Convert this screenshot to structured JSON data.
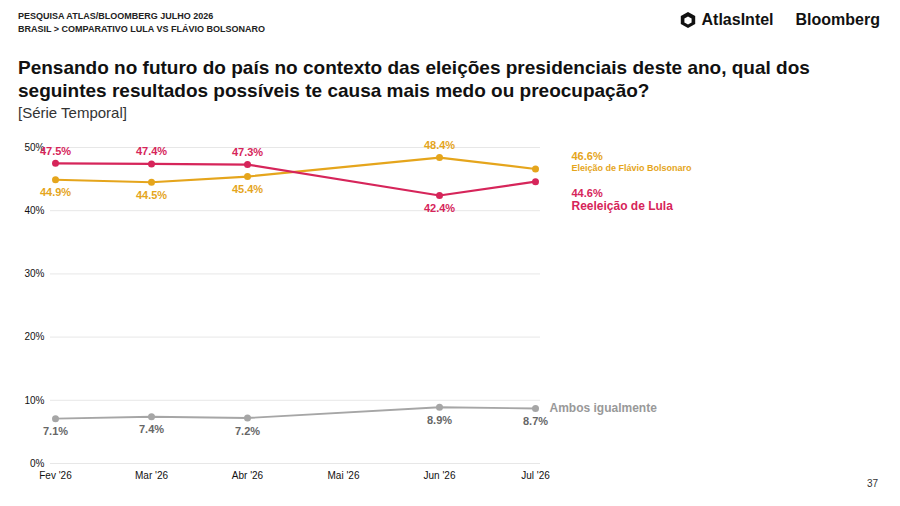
{
  "chart_data": {
    "type": "line",
    "header": [
      "PESQUISA ATLAS/BLOOMBERG JULHO 2026",
      "BRASIL > COMPARATIVO LULA VS FLÁVIO BOLSONARO"
    ],
    "brands": [
      "AtlasIntel",
      "Bloomberg"
    ],
    "title": "Pensando no futuro do país no contexto das eleições presidenciais deste ano, qual dos seguintes resultados possíveis te causa mais medo ou preocupação?",
    "subtitle": "[Série Temporal]",
    "page": 37,
    "categories": [
      "Fev '26",
      "Mar '26",
      "Abr '26",
      "Mai '26",
      "Jun '26",
      "Jul '26"
    ],
    "series": [
      {
        "name": "Ambos igualmente",
        "color": "#a6a6a6",
        "values": [
          7.1,
          7.4,
          7.2,
          null,
          8.9,
          8.7
        ],
        "value_labels": [
          "7.1%",
          "7.4%",
          "7.2%",
          null,
          "8.9%",
          "8.7%"
        ]
      },
      {
        "name": "Eleição de Flávio Bolsonaro",
        "color": "#e5a51c",
        "values": [
          44.9,
          44.5,
          45.4,
          null,
          48.4,
          46.6
        ],
        "value_labels": [
          "44.9%",
          "44.5%",
          "45.4%",
          null,
          "48.4%",
          "46.6%"
        ]
      },
      {
        "name": "Reeleição de Lula",
        "color": "#d6255a",
        "values": [
          47.5,
          47.4,
          47.3,
          null,
          42.4,
          44.6
        ],
        "value_labels": [
          "47.5%",
          "47.4%",
          "47.3%",
          null,
          "42.4%",
          "44.6%"
        ]
      }
    ],
    "ylim": [
      0,
      50
    ],
    "yticks": [
      {
        "value": 0,
        "label": "0%"
      },
      {
        "value": 10,
        "label": "10%"
      },
      {
        "value": 20,
        "label": "20%"
      },
      {
        "value": 30,
        "label": "30%"
      },
      {
        "value": 40,
        "label": "40%"
      },
      {
        "value": 50,
        "label": "50%"
      }
    ],
    "grid": true,
    "data_labels": true,
    "marker": "circle"
  }
}
